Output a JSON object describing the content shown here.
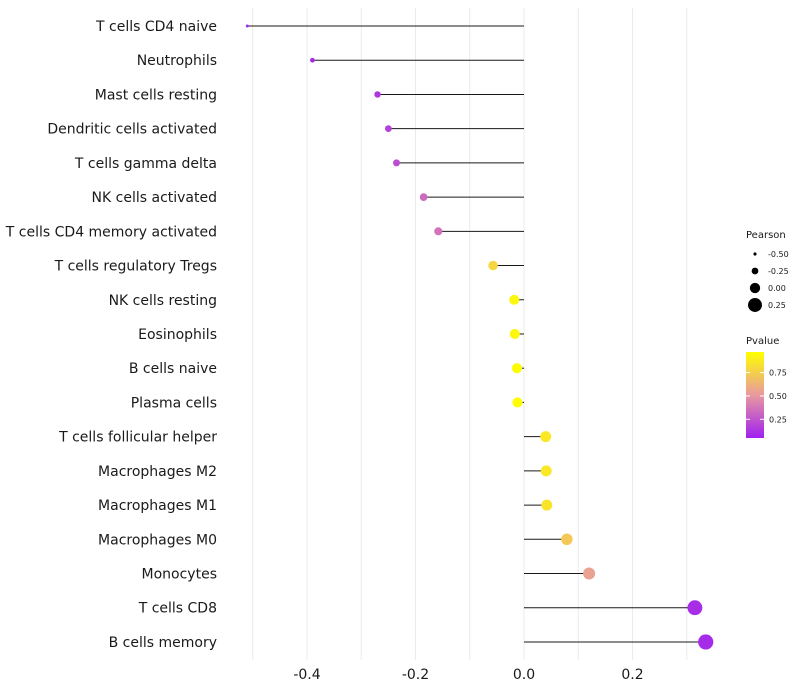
{
  "chart_data": {
    "type": "lollipop",
    "title": "",
    "xlabel": "",
    "ylabel": "",
    "xlim": [
      -0.51,
      0.345
    ],
    "xticks": [
      -0.4,
      -0.2,
      0.0,
      0.2
    ],
    "xtick_labels": [
      "-0.4",
      "-0.2",
      "0.0",
      "0.2"
    ],
    "grid": true,
    "colors": {
      "low": "#a020f0",
      "mid": "#e899a0",
      "high": "#ffff00",
      "stem": "#1a1a1a",
      "grid": "#ebebeb"
    },
    "points": [
      {
        "label": "T cells CD4 naive",
        "pearson": -0.51,
        "pvalue": 0.08
      },
      {
        "label": "Neutrophils",
        "pearson": -0.39,
        "pvalue": 0.08
      },
      {
        "label": "Mast cells resting",
        "pearson": -0.27,
        "pvalue": 0.14
      },
      {
        "label": "Dendritic cells activated",
        "pearson": -0.25,
        "pvalue": 0.18
      },
      {
        "label": "T cells gamma delta",
        "pearson": -0.235,
        "pvalue": 0.22
      },
      {
        "label": "NK cells activated",
        "pearson": -0.185,
        "pvalue": 0.33
      },
      {
        "label": "T cells CD4 memory activated",
        "pearson": -0.158,
        "pvalue": 0.36
      },
      {
        "label": "T cells regulatory  Tregs ",
        "pearson": -0.057,
        "pvalue": 0.78
      },
      {
        "label": "NK cells resting",
        "pearson": -0.018,
        "pvalue": 0.93
      },
      {
        "label": "Eosinophils",
        "pearson": -0.017,
        "pvalue": 0.93
      },
      {
        "label": "B cells naive",
        "pearson": -0.013,
        "pvalue": 0.95
      },
      {
        "label": "Plasma cells",
        "pearson": -0.012,
        "pvalue": 0.96
      },
      {
        "label": "T cells follicular helper",
        "pearson": 0.04,
        "pvalue": 0.86
      },
      {
        "label": "Macrophages M2",
        "pearson": 0.041,
        "pvalue": 0.86
      },
      {
        "label": "Macrophages M1",
        "pearson": 0.042,
        "pvalue": 0.85
      },
      {
        "label": "Macrophages M0",
        "pearson": 0.079,
        "pvalue": 0.72
      },
      {
        "label": "Monocytes",
        "pearson": 0.12,
        "pvalue": 0.55
      },
      {
        "label": "T cells CD8",
        "pearson": 0.315,
        "pvalue": 0.1
      },
      {
        "label": "B cells memory",
        "pearson": 0.335,
        "pvalue": 0.09
      }
    ],
    "legend_size": {
      "title": "Pearson",
      "values": [
        -0.5,
        -0.25,
        0.0,
        0.25
      ],
      "labels": [
        "-0.50",
        "-0.25",
        "0.00",
        "0.25"
      ]
    },
    "legend_color": {
      "title": "Pvalue",
      "values": [
        0.75,
        0.5,
        0.25
      ],
      "labels": [
        "0.75",
        "0.50",
        "0.25"
      ],
      "range": [
        0.05,
        0.97
      ]
    }
  }
}
